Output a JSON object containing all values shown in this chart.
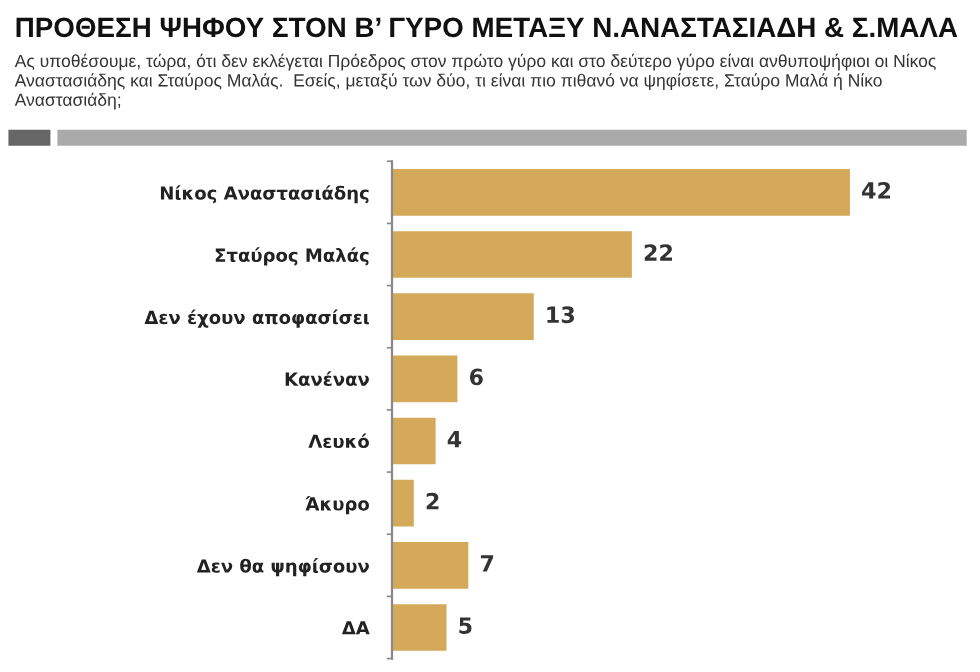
{
  "chart_data": {
    "type": "bar",
    "orientation": "horizontal",
    "title": "ΠΡΟΘΕΣΗ ΨΗΦΟΥ ΣΤΟΝ Β’ ΓΥΡΟ ΜΕΤΑΞΥ Ν.ΑΝΑΣΤΑΣΙΑΔΗ & Σ.ΜΑΛΑ",
    "subtitle": "Ας υποθέσουμε, τώρα, ότι δεν εκλέγεται Πρόεδρος στον πρώτο γύρο και στο δεύτερο γύρο είναι ανθυποψήφιοι οι Νίκος Αναστασιάδης και Σταύρος Μαλάς.  Εσείς, μεταξύ των δύο, τι είναι πιο πιθανό να ψηφίσετε, Σταύρο Μαλά ή Νίκο Αναστασιάδη;",
    "categories": [
      "Νίκος Αναστασιάδης",
      "Σταύρος Μαλάς",
      "Δεν έχουν αποφασίσει",
      "Κανέναν",
      "Λευκό",
      "Άκυρο",
      "Δεν θα ψηφίσουν",
      "ΔΑ"
    ],
    "values": [
      42,
      22,
      13,
      6,
      4,
      2,
      7,
      5
    ],
    "color": "#d4aa5a",
    "data_labels": true,
    "grid": false,
    "legend": false
  }
}
